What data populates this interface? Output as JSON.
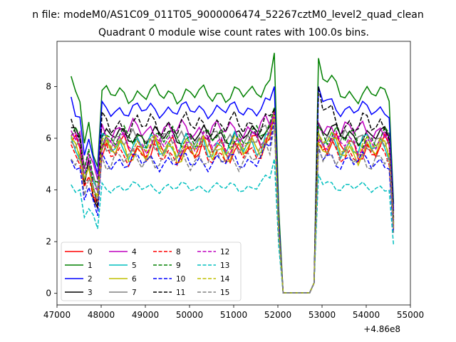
{
  "figure": {
    "suptitle": "n file: modeM0/AS1C09_011T05_9000006474_52267cztM0_level2_quad_clean"
  },
  "chart_data": {
    "type": "line",
    "title": "Quadrant 0 module wise count rates with 100.0s bins.",
    "xlabel": "",
    "ylabel": "",
    "x_offset_label": "+4.86e8",
    "xlim": [
      47000,
      55000
    ],
    "ylim": [
      -0.45,
      9.75
    ],
    "xticks": [
      47000,
      48000,
      49000,
      50000,
      51000,
      52000,
      53000,
      54000,
      55000
    ],
    "yticks": [
      0,
      2,
      4,
      6,
      8
    ],
    "grid": false,
    "legend": {
      "placement": "lower-left",
      "ncol": 4
    },
    "x_start": 47320,
    "x_step": 100,
    "n_points": 74,
    "series": [
      {
        "name": "0",
        "color": "#ff0000",
        "dash": false,
        "base": 5.6,
        "amp": 0.35,
        "peak": 7.1,
        "dip": 3.6,
        "post": 6.2,
        "phase": 0.3
      },
      {
        "name": "1",
        "color": "#008000",
        "dash": false,
        "base": 7.7,
        "amp": 0.25,
        "peak": 9.3,
        "dip": 4.9,
        "post": 9.1,
        "phase": 1.1,
        "start": 8.4
      },
      {
        "name": "2",
        "color": "#0000ff",
        "dash": false,
        "base": 7.1,
        "amp": 0.22,
        "peak": 8.0,
        "dip": 4.6,
        "post": 8.0,
        "phase": 2.0,
        "start": 7.6
      },
      {
        "name": "3",
        "color": "#000000",
        "dash": false,
        "base": 6.1,
        "amp": 0.25,
        "peak": 7.0,
        "dip": 3.3,
        "post": 6.6,
        "phase": 0.7
      },
      {
        "name": "4",
        "color": "#bf00bf",
        "dash": false,
        "base": 6.3,
        "amp": 0.3,
        "peak": 7.0,
        "dip": 4.4,
        "post": 6.6,
        "phase": 2.6
      },
      {
        "name": "5",
        "color": "#00bfbf",
        "dash": false,
        "base": 5.7,
        "amp": 0.35,
        "peak": 6.8,
        "dip": 4.0,
        "post": 6.0,
        "phase": 1.6
      },
      {
        "name": "6",
        "color": "#bfbf00",
        "dash": false,
        "base": 5.5,
        "amp": 0.35,
        "peak": 7.0,
        "dip": 3.8,
        "post": 5.8,
        "phase": 0.9
      },
      {
        "name": "7",
        "color": "#808080",
        "dash": false,
        "base": 5.9,
        "amp": 0.3,
        "peak": 6.9,
        "dip": 3.9,
        "post": 6.2,
        "phase": 2.9
      },
      {
        "name": "8",
        "color": "#ff0000",
        "dash": true,
        "base": 5.4,
        "amp": 0.3,
        "peak": 6.9,
        "dip": 3.4,
        "post": 5.9,
        "phase": 1.4
      },
      {
        "name": "9",
        "color": "#008000",
        "dash": true,
        "base": 6.0,
        "amp": 0.3,
        "peak": 7.2,
        "dip": 4.3,
        "post": 6.5,
        "phase": 0.1
      },
      {
        "name": "10",
        "color": "#0000ff",
        "dash": true,
        "base": 5.1,
        "amp": 0.25,
        "peak": 6.7,
        "dip": 3.0,
        "post": 5.6,
        "phase": 2.2
      },
      {
        "name": "11",
        "color": "#000000",
        "dash": true,
        "base": 6.5,
        "amp": 0.35,
        "peak": 7.1,
        "dip": 3.4,
        "post": 8.0,
        "phase": 1.8
      },
      {
        "name": "12",
        "color": "#bf00bf",
        "dash": true,
        "base": 5.8,
        "amp": 0.3,
        "peak": 7.0,
        "dip": 4.0,
        "post": 6.0,
        "phase": 0.5
      },
      {
        "name": "13",
        "color": "#00bfbf",
        "dash": true,
        "base": 4.1,
        "amp": 0.15,
        "peak": 5.2,
        "dip": 2.5,
        "post": 4.6,
        "phase": 2.4,
        "start": 4.2
      },
      {
        "name": "14",
        "color": "#bfbf00",
        "dash": true,
        "base": 5.7,
        "amp": 0.3,
        "peak": 6.9,
        "dip": 3.7,
        "post": 6.2,
        "phase": 1.2
      },
      {
        "name": "15",
        "color": "#808080",
        "dash": true,
        "base": 5.2,
        "amp": 0.3,
        "peak": 6.5,
        "dip": 3.5,
        "post": 5.7,
        "phase": 3.0
      }
    ]
  }
}
